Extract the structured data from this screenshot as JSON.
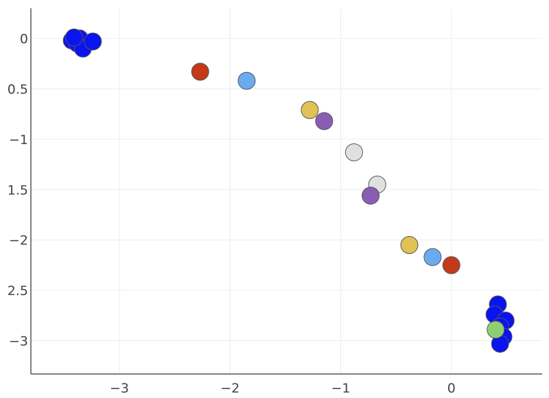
{
  "chart_data": {
    "type": "scatter",
    "title": "",
    "xlabel": "",
    "ylabel": "",
    "xlim": [
      -3.8,
      0.82
    ],
    "ylim": [
      -3.33,
      0.3
    ],
    "grid": true,
    "x_ticks": [
      {
        "value": -3,
        "label": "−3"
      },
      {
        "value": -2,
        "label": "−2"
      },
      {
        "value": -1,
        "label": "−1"
      },
      {
        "value": 0,
        "label": "0"
      }
    ],
    "y_ticks": [
      {
        "value": 0,
        "label": "0"
      },
      {
        "value": -0.5,
        "label": "0.5"
      },
      {
        "value": -1,
        "label": "−1"
      },
      {
        "value": -1.5,
        "label": "1.5"
      },
      {
        "value": -2,
        "label": "−2"
      },
      {
        "value": -2.5,
        "label": "2.5"
      },
      {
        "value": -3,
        "label": "−3"
      }
    ],
    "points": [
      {
        "x": -3.43,
        "y": -0.02,
        "color": "#0a14f0"
      },
      {
        "x": -3.38,
        "y": -0.05,
        "color": "#0a14f0"
      },
      {
        "x": -3.36,
        "y": 0.0,
        "color": "#0a14f0"
      },
      {
        "x": -3.33,
        "y": -0.1,
        "color": "#0a14f0"
      },
      {
        "x": -3.24,
        "y": -0.03,
        "color": "#0a14f0"
      },
      {
        "x": -3.41,
        "y": 0.01,
        "color": "#0a14f0"
      },
      {
        "x": -2.27,
        "y": -0.33,
        "color": "#c23a1a"
      },
      {
        "x": -1.85,
        "y": -0.42,
        "color": "#6aaaf0"
      },
      {
        "x": -1.28,
        "y": -0.71,
        "color": "#e2c155"
      },
      {
        "x": -1.15,
        "y": -0.82,
        "color": "#8a5cb4"
      },
      {
        "x": -0.88,
        "y": -1.13,
        "color": "#e0e0e0"
      },
      {
        "x": -0.67,
        "y": -1.45,
        "color": "#e0e0e0"
      },
      {
        "x": -0.73,
        "y": -1.56,
        "color": "#8a5cb4"
      },
      {
        "x": -0.38,
        "y": -2.05,
        "color": "#e2c155"
      },
      {
        "x": -0.17,
        "y": -2.17,
        "color": "#6aaaf0"
      },
      {
        "x": 0.0,
        "y": -2.25,
        "color": "#c23a1a"
      },
      {
        "x": 0.42,
        "y": -2.64,
        "color": "#0a14f0"
      },
      {
        "x": 0.39,
        "y": -2.74,
        "color": "#0a14f0"
      },
      {
        "x": 0.49,
        "y": -2.8,
        "color": "#0a14f0"
      },
      {
        "x": 0.44,
        "y": -2.86,
        "color": "#0a14f0"
      },
      {
        "x": 0.47,
        "y": -2.96,
        "color": "#0a14f0"
      },
      {
        "x": 0.44,
        "y": -3.03,
        "color": "#0a14f0"
      },
      {
        "x": 0.4,
        "y": -2.89,
        "color": "#8fcf74"
      }
    ]
  }
}
